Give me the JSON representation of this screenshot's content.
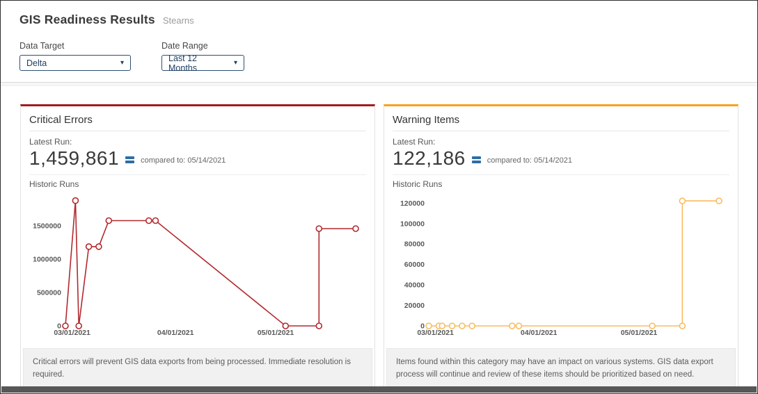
{
  "header": {
    "title": "GIS Readiness Results",
    "subtitle": "Stearns",
    "filters": [
      {
        "label": "Data Target",
        "value": "Delta"
      },
      {
        "label": "Date Range",
        "value": "Last 12 Months"
      }
    ]
  },
  "cards": [
    {
      "title": "Critical Errors",
      "latest_run_label": "Latest Run:",
      "latest_value": "1,459,861",
      "compared_label": "compared to: 05/14/2021",
      "historic_label": "Historic Runs",
      "footer": "Critical errors will prevent GIS data exports from being processed. Immediate resolution is required.",
      "accent_color": "#a21c22"
    },
    {
      "title": "Warning Items",
      "latest_run_label": "Latest Run:",
      "latest_value": "122,186",
      "compared_label": "compared to: 05/14/2021",
      "historic_label": "Historic Runs",
      "footer": "Items found within this category may have an impact on various systems. GIS data export process will continue and review of these items should be prioritized based on need.",
      "accent_color": "#f9a11e"
    }
  ],
  "chart_data": [
    {
      "type": "line",
      "title": "Critical Errors - Historic Runs",
      "x": [
        "02/27/2021",
        "03/02/2021",
        "03/03/2021",
        "03/06/2021",
        "03/09/2021",
        "03/12/2021",
        "03/24/2021",
        "03/26/2021",
        "05/04/2021",
        "05/14/2021",
        "05/14/2021",
        "05/25/2021"
      ],
      "values": [
        0,
        1880000,
        0,
        1190000,
        1190000,
        1580000,
        1580000,
        1580000,
        0,
        0,
        1459861,
        1459861
      ],
      "x_ticks": [
        "03/01/2021",
        "04/01/2021",
        "05/01/2021"
      ],
      "y_ticks": [
        0,
        500000,
        1000000,
        1500000
      ],
      "ylim": [
        0,
        1950000
      ],
      "line_color": "#b2292e",
      "marker": "open-circle",
      "grid": false,
      "legend": "none"
    },
    {
      "type": "line",
      "title": "Warning Items - Historic Runs",
      "x": [
        "02/27/2021",
        "03/02/2021",
        "03/03/2021",
        "03/06/2021",
        "03/09/2021",
        "03/12/2021",
        "03/24/2021",
        "03/26/2021",
        "05/05/2021",
        "05/14/2021",
        "05/14/2021",
        "05/25/2021"
      ],
      "values": [
        0,
        0,
        0,
        0,
        0,
        0,
        0,
        0,
        0,
        0,
        122186,
        122186
      ],
      "x_ticks": [
        "03/01/2021",
        "04/01/2021",
        "05/01/2021"
      ],
      "y_ticks": [
        0,
        20000,
        40000,
        60000,
        80000,
        100000,
        120000
      ],
      "ylim": [
        0,
        127000
      ],
      "line_color": "#f9bc60",
      "marker": "open-circle",
      "grid": false,
      "legend": "none"
    }
  ]
}
